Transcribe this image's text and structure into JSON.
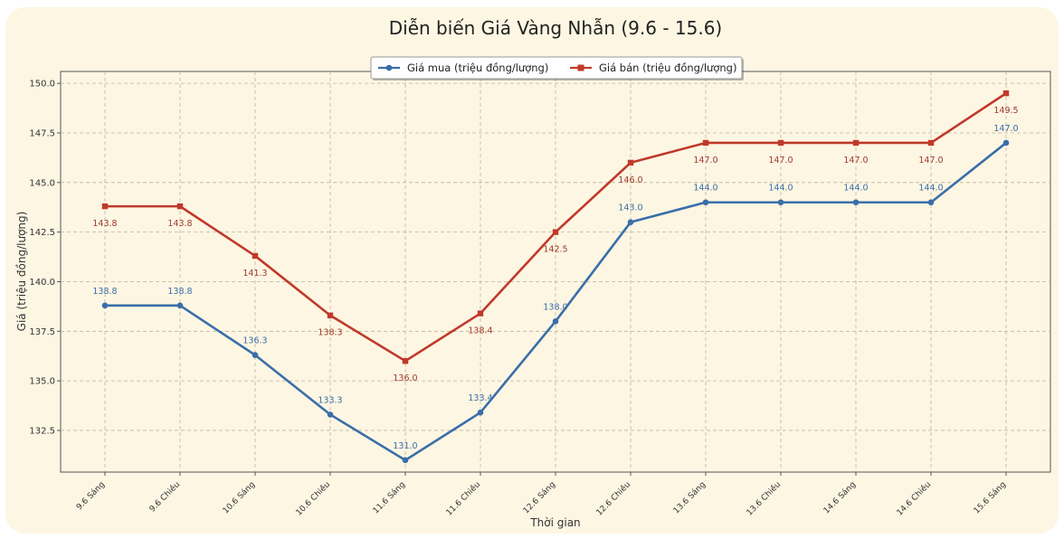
{
  "chart_data": {
    "type": "line",
    "title": "Diễn biến Giá Vàng Nhẫn (9.6 - 15.6)",
    "xlabel": "Thời gian",
    "ylabel": "Giá (triệu đồng/lượng)",
    "ylim": [
      130.4,
      150.6
    ],
    "yticks": [
      "132.5",
      "135.0",
      "137.5",
      "140.0",
      "142.5",
      "145.0",
      "147.5",
      "150.0"
    ],
    "grid": true,
    "legend_position": "top-center",
    "categories": [
      "9.6 Sáng",
      "9.6 Chiều",
      "10.6 Sáng",
      "10.6 Chiều",
      "11.6 Sáng",
      "11.6 Chiều",
      "12.6 Sáng",
      "12.6 Chiều",
      "13.6 Sáng",
      "13.6 Chiều",
      "14.6 Sáng",
      "14.6 Chiều",
      "15.6 Sáng"
    ],
    "series": [
      {
        "name": "Giá mua (triệu đồng/lượng)",
        "color": "#3a6ea8",
        "marker": "circle",
        "values": [
          138.8,
          138.8,
          136.3,
          133.3,
          131.0,
          133.4,
          138.0,
          143.0,
          144.0,
          144.0,
          144.0,
          144.0,
          147.0
        ],
        "labels": [
          "138.8",
          "138.8",
          "136.3",
          "133.3",
          "131.0",
          "133.4",
          "138.0",
          "143.0",
          "144.0",
          "144.0",
          "144.0",
          "144.0",
          "147.0"
        ]
      },
      {
        "name": "Giá bán (triệu đồng/lượng)",
        "color": "#c0392b",
        "marker": "square",
        "values": [
          143.8,
          143.8,
          141.3,
          138.3,
          136.0,
          138.4,
          142.5,
          146.0,
          147.0,
          147.0,
          147.0,
          147.0,
          149.5
        ],
        "labels": [
          "143.8",
          "143.8",
          "141.3",
          "138.3",
          "136.0",
          "138.4",
          "142.5",
          "146.0",
          "147.0",
          "147.0",
          "147.0",
          "147.0",
          "149.5"
        ]
      }
    ]
  }
}
